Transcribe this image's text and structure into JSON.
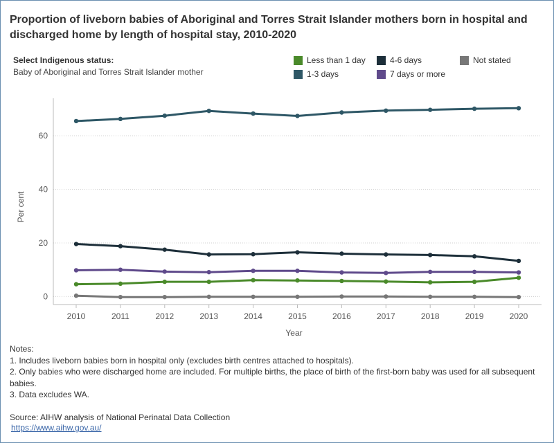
{
  "title": "Proportion of liveborn babies of Aboriginal and Torres Strait Islander mothers born in hospital and discharged home by length of hospital stay, 2010-2020",
  "filter": {
    "label": "Select Indigenous status:",
    "value": "Baby of Aboriginal and Torres Strait Islander mother"
  },
  "notes": {
    "heading": "Notes:",
    "items": [
      "1. Includes liveborn babies born in hospital only (excludes birth centres attached to hospitals).",
      "2. Only babies who were discharged home are included. For multiple births, the place of birth of the first-born baby was used for all subsequent babies.",
      "3. Data excludes WA."
    ]
  },
  "source": {
    "text": "Source: AIHW analysis of National Perinatal Data Collection",
    "link": "https://www.aihw.gov.au/"
  },
  "chart_data": {
    "type": "line",
    "title": "",
    "xlabel": "Year",
    "ylabel": "Per cent",
    "x": [
      2010,
      2011,
      2012,
      2013,
      2014,
      2015,
      2016,
      2017,
      2018,
      2019,
      2020
    ],
    "ylim": [
      -3,
      74
    ],
    "yticks": [
      0,
      20,
      40,
      60
    ],
    "grid": true,
    "legend_position": "top-right",
    "series": [
      {
        "name": "1-3 days",
        "color": "#2e5766",
        "values": [
          65.5,
          66.3,
          67.5,
          69.3,
          68.3,
          67.4,
          68.7,
          69.4,
          69.7,
          70.1,
          70.3
        ]
      },
      {
        "name": "4-6 days",
        "color": "#1d2f3a",
        "values": [
          19.6,
          18.8,
          17.5,
          15.7,
          15.8,
          16.5,
          16.0,
          15.7,
          15.5,
          15.0,
          13.3
        ]
      },
      {
        "name": "7 days or more",
        "color": "#5f4a8b",
        "values": [
          9.8,
          10.0,
          9.3,
          9.1,
          9.6,
          9.6,
          9.0,
          8.8,
          9.2,
          9.2,
          9.0
        ]
      },
      {
        "name": "Less than 1 day",
        "color": "#4a8a2a",
        "values": [
          4.6,
          4.8,
          5.5,
          5.5,
          6.1,
          6.0,
          5.8,
          5.6,
          5.3,
          5.5,
          7.0
        ]
      },
      {
        "name": "Not stated",
        "color": "#777777",
        "values": [
          0.3,
          -0.2,
          -0.2,
          -0.1,
          -0.1,
          -0.1,
          0.0,
          0.0,
          -0.1,
          -0.1,
          -0.2
        ]
      }
    ]
  }
}
